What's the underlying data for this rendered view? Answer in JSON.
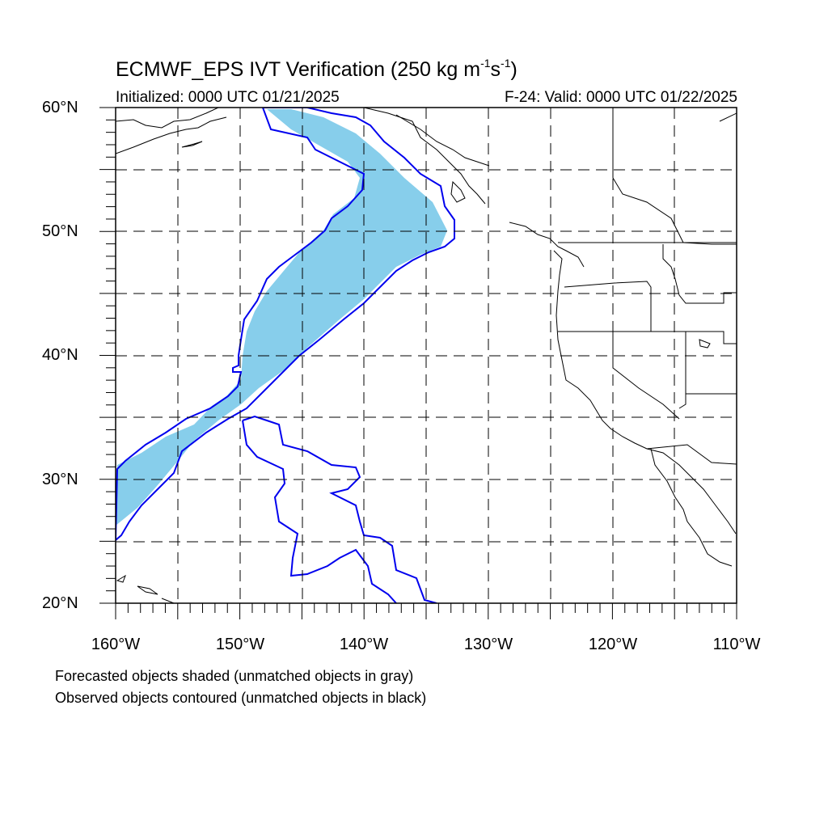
{
  "title": {
    "prefix": "ECMWF_EPS IVT Verification (250 kg m",
    "exp1": "-1",
    "mid": "s",
    "exp2": "-1",
    "suffix": ")"
  },
  "subtitle_left": "Initialized: 0000 UTC 01/21/2025",
  "subtitle_right": "F-24: Valid: 0000 UTC 01/22/2025",
  "lat_labels": [
    "60°N",
    "50°N",
    "40°N",
    "30°N",
    "20°N"
  ],
  "lon_labels": [
    "160°W",
    "150°W",
    "140°W",
    "130°W",
    "120°W",
    "110°W"
  ],
  "captions": [
    "Forecasted objects shaded (unmatched objects in gray)",
    "Observed objects contoured (unmatched objects in black)"
  ],
  "colors": {
    "forecast_fill": "#87ceeb",
    "observed_contour": "#0000ee",
    "coastline": "#000000",
    "grid": "#000000"
  },
  "map_extent": {
    "lon_min": -160,
    "lon_max": -110,
    "lat_min": 20,
    "lat_max": 60
  }
}
